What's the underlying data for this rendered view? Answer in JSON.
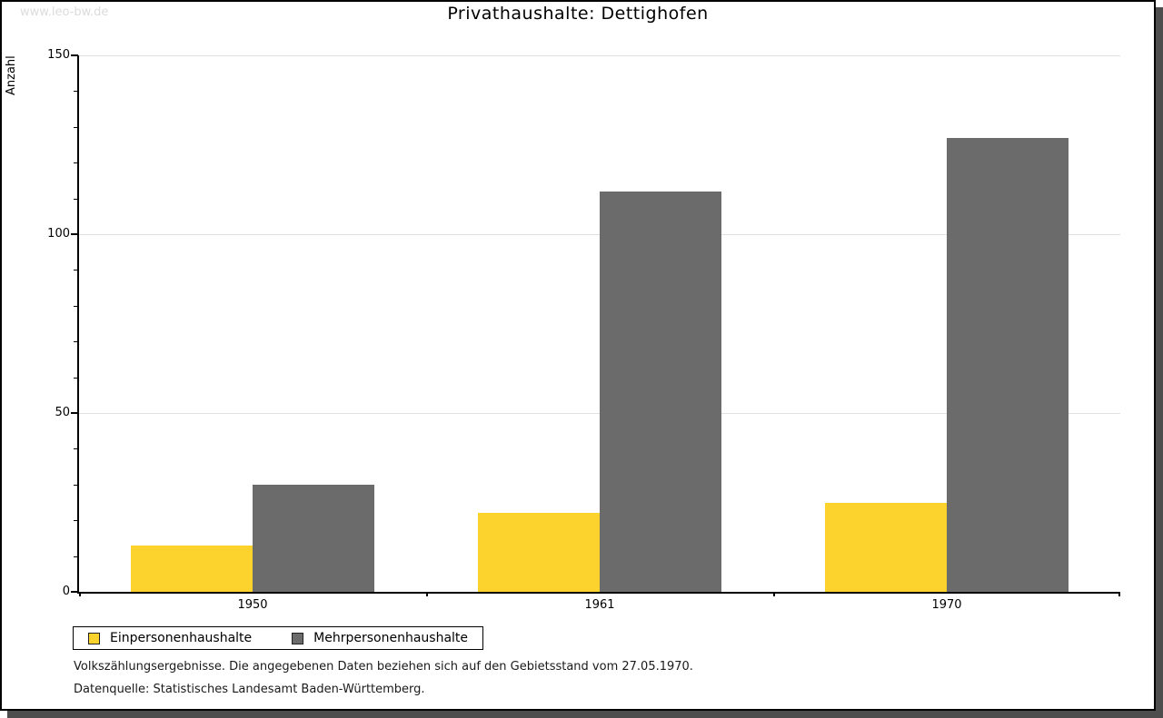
{
  "page": {
    "watermark": "www.leo-bw.de",
    "title": "Privathaushalte: Dettighofen",
    "footnote1": "Volkszählungsergebnisse. Die angegebenen Daten beziehen sich auf den Gebietsstand vom 27.05.1970.",
    "footnote2": "Datenquelle: Statistisches Landesamt Baden-Württemberg."
  },
  "colors": {
    "series_yellow": "#fcd32d",
    "series_gray": "#6b6b6b",
    "gridline": "#e0e0e0",
    "axis": "#000000",
    "watermark": "#dcdcdc",
    "frame_shadow": "#4d4d4d"
  },
  "chart_data": {
    "type": "bar",
    "title": "Privathaushalte: Dettighofen",
    "categories": [
      "1950",
      "1961",
      "1970"
    ],
    "series": [
      {
        "name": "Einpersonenhaushalte",
        "color": "#fcd32d",
        "values": [
          13,
          22,
          25
        ]
      },
      {
        "name": "Mehrpersonenhaushalte",
        "color": "#6b6b6b",
        "values": [
          30,
          112,
          127
        ]
      }
    ],
    "xlabel": "",
    "ylabel": "Anzahl",
    "ylim": [
      0,
      150
    ],
    "yticks_major": [
      0,
      50,
      100,
      150
    ],
    "ytick_minor_step": 10,
    "grid": "horizontal-major-lines",
    "legend_position": "bottom-left-boxed"
  }
}
